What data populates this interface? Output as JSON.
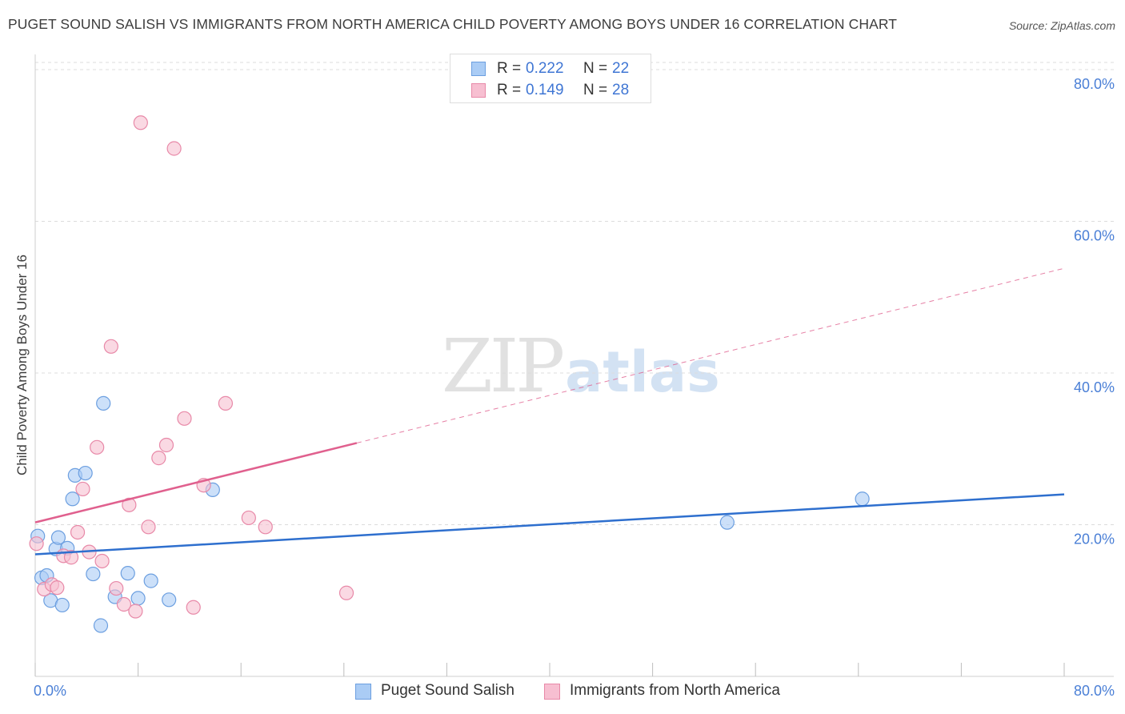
{
  "header": {
    "title": "PUGET SOUND SALISH VS IMMIGRANTS FROM NORTH AMERICA CHILD POVERTY AMONG BOYS UNDER 16 CORRELATION CHART",
    "source": "Source: ZipAtlas.com"
  },
  "watermark": {
    "zip": "ZIP",
    "atlas": "atlas"
  },
  "colors": {
    "blue_fill": "#aaccf5",
    "blue_stroke": "#6c9fe0",
    "blue_line": "#2e6fce",
    "pink_fill": "#f7bfd1",
    "pink_stroke": "#e889a8",
    "pink_line": "#e0608e",
    "grid": "#dcdcdc",
    "tick_label": "#4a7fd6"
  },
  "legend": {
    "series": [
      {
        "name": "Puget Sound Salish",
        "r_label": "R =",
        "r_value": "0.222",
        "n_label": "N =",
        "n_value": "22"
      },
      {
        "name": "Immigrants from North America",
        "r_label": "R =",
        "r_value": "0.149",
        "n_label": "N =",
        "n_value": "28"
      }
    ]
  },
  "chart_data": {
    "type": "scatter",
    "title": "PUGET SOUND SALISH VS IMMIGRANTS FROM NORTH AMERICA CHILD POVERTY AMONG BOYS UNDER 16 CORRELATION CHART",
    "xlabel": "",
    "ylabel": "Child Poverty Among Boys Under 16",
    "xlim": [
      0,
      80
    ],
    "ylim": [
      0,
      82
    ],
    "x_tick_labels": [
      {
        "value": 0,
        "label": "0.0%"
      },
      {
        "value": 80,
        "label": "80.0%"
      }
    ],
    "y_tick_labels": [
      {
        "value": 20,
        "label": "20.0%"
      },
      {
        "value": 40,
        "label": "40.0%"
      },
      {
        "value": 60,
        "label": "60.0%"
      },
      {
        "value": 80,
        "label": "80.0%"
      }
    ],
    "x_minor_ticks": [
      0,
      8,
      16,
      24,
      32,
      40,
      48,
      56,
      64,
      72,
      80
    ],
    "grid": true,
    "legend_position": "top-center",
    "series": [
      {
        "name": "Puget Sound Salish",
        "color": "#aaccf5",
        "points": [
          [
            0.2,
            18.5
          ],
          [
            0.5,
            13.0
          ],
          [
            0.9,
            13.3
          ],
          [
            1.2,
            10.0
          ],
          [
            1.6,
            16.8
          ],
          [
            1.8,
            18.3
          ],
          [
            2.1,
            9.4
          ],
          [
            2.5,
            16.9
          ],
          [
            2.9,
            23.4
          ],
          [
            3.1,
            26.5
          ],
          [
            3.9,
            26.8
          ],
          [
            4.5,
            13.5
          ],
          [
            5.1,
            6.7
          ],
          [
            5.3,
            36.0
          ],
          [
            6.2,
            10.5
          ],
          [
            8.0,
            10.3
          ],
          [
            7.2,
            13.6
          ],
          [
            9.0,
            12.6
          ],
          [
            10.4,
            10.1
          ],
          [
            13.8,
            24.6
          ],
          [
            53.8,
            20.3
          ],
          [
            64.3,
            23.4
          ]
        ],
        "trend": {
          "x0": 0,
          "y0": 16.1,
          "x1": 80,
          "y1": 24.0,
          "solid_to": 80
        }
      },
      {
        "name": "Immigrants from North America",
        "color": "#f7bfd1",
        "points": [
          [
            0.1,
            17.5
          ],
          [
            0.7,
            11.5
          ],
          [
            1.3,
            12.1
          ],
          [
            1.7,
            11.7
          ],
          [
            2.2,
            15.9
          ],
          [
            2.8,
            15.7
          ],
          [
            3.3,
            19.0
          ],
          [
            3.7,
            24.7
          ],
          [
            4.2,
            16.4
          ],
          [
            4.8,
            30.2
          ],
          [
            5.2,
            15.2
          ],
          [
            5.9,
            43.5
          ],
          [
            6.3,
            11.6
          ],
          [
            6.9,
            9.5
          ],
          [
            7.3,
            22.6
          ],
          [
            7.8,
            8.6
          ],
          [
            8.2,
            73.0
          ],
          [
            8.8,
            19.7
          ],
          [
            9.6,
            28.8
          ],
          [
            10.2,
            30.5
          ],
          [
            10.8,
            69.6
          ],
          [
            11.6,
            34.0
          ],
          [
            12.3,
            9.1
          ],
          [
            13.1,
            25.2
          ],
          [
            14.8,
            36.0
          ],
          [
            16.6,
            20.9
          ],
          [
            17.9,
            19.7
          ],
          [
            24.2,
            11.0
          ]
        ],
        "trend": {
          "x0": 0,
          "y0": 20.3,
          "x1": 80,
          "y1": 53.8,
          "solid_to": 25
        }
      }
    ]
  }
}
